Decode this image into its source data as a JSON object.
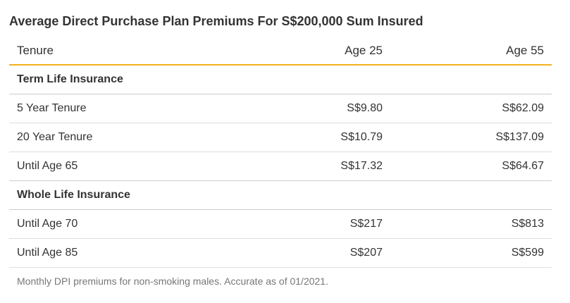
{
  "title": "Average Direct Purchase Plan Premiums For S$200,000 Sum Insured",
  "columns": [
    "Tenure",
    "Age 25",
    "Age 55"
  ],
  "sections": [
    {
      "name": "Term Life Insurance",
      "rows": [
        {
          "tenure": "5 Year Tenure",
          "age25": "S$9.80",
          "age55": "S$62.09"
        },
        {
          "tenure": "20 Year Tenure",
          "age25": "S$10.79",
          "age55": "S$137.09"
        },
        {
          "tenure": "Until Age 65",
          "age25": "S$17.32",
          "age55": "S$64.67"
        }
      ]
    },
    {
      "name": "Whole Life Insurance",
      "rows": [
        {
          "tenure": "Until Age 70",
          "age25": "S$217",
          "age55": "S$813"
        },
        {
          "tenure": "Until Age 85",
          "age25": "S$207",
          "age55": "S$599"
        }
      ]
    }
  ],
  "note": "Monthly DPI premiums for non-smoking males. Accurate as of 01/2021.",
  "colors": {
    "accent": "#f2b01e",
    "text": "#333333",
    "muted": "#777777",
    "divider": "#dddddd"
  }
}
